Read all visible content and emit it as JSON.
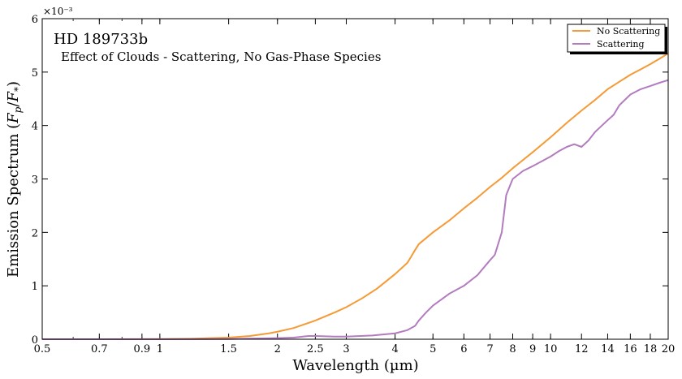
{
  "chart_data": {
    "type": "line",
    "title": "HD 189733b",
    "subtitle": "Effect of Clouds - Scattering, No Gas-Phase Species",
    "xlabel": "Wavelength (µm)",
    "ylabel": "Emission Spectrum (Fp/F*)",
    "y_multiplier": "×10⁻³",
    "xscale": "log",
    "xlim": [
      0.5,
      20
    ],
    "ylim": [
      0,
      6
    ],
    "x_ticks": [
      0.5,
      0.7,
      0.9,
      1,
      1.5,
      2,
      2.5,
      3,
      4,
      5,
      6,
      7,
      8,
      9,
      10,
      12,
      14,
      16,
      18,
      20
    ],
    "x_tick_labels": [
      "0.5",
      "0.7",
      "0.9",
      "1",
      "1.5",
      "2",
      "2.5",
      "3",
      "4",
      "5",
      "6",
      "7",
      "8",
      "9",
      "10",
      "12",
      "14",
      "16",
      "18",
      "20"
    ],
    "y_ticks": [
      0,
      1,
      2,
      3,
      4,
      5,
      6
    ],
    "y_tick_labels": [
      "0",
      "1",
      "2",
      "3",
      "4",
      "5",
      "6"
    ],
    "grid": false,
    "legend_position": "top-right",
    "series": [
      {
        "name": "No Scattering",
        "color": "#f59a35",
        "points": [
          [
            0.5,
            0
          ],
          [
            0.7,
            0
          ],
          [
            1.0,
            0.003
          ],
          [
            1.2,
            0.01
          ],
          [
            1.5,
            0.03
          ],
          [
            1.7,
            0.06
          ],
          [
            1.9,
            0.11
          ],
          [
            2.0,
            0.14
          ],
          [
            2.2,
            0.21
          ],
          [
            2.5,
            0.35
          ],
          [
            2.8,
            0.5
          ],
          [
            3.0,
            0.6
          ],
          [
            3.3,
            0.77
          ],
          [
            3.6,
            0.95
          ],
          [
            4.0,
            1.22
          ],
          [
            4.3,
            1.43
          ],
          [
            4.4,
            1.55
          ],
          [
            4.5,
            1.67
          ],
          [
            4.6,
            1.78
          ],
          [
            5.0,
            2.0
          ],
          [
            5.5,
            2.22
          ],
          [
            6.0,
            2.45
          ],
          [
            6.5,
            2.65
          ],
          [
            7.0,
            2.85
          ],
          [
            7.5,
            3.02
          ],
          [
            8.0,
            3.2
          ],
          [
            9.0,
            3.5
          ],
          [
            10.0,
            3.78
          ],
          [
            11.0,
            4.05
          ],
          [
            12.0,
            4.28
          ],
          [
            13.0,
            4.48
          ],
          [
            14.0,
            4.68
          ],
          [
            15.0,
            4.82
          ],
          [
            16.0,
            4.95
          ],
          [
            17.0,
            5.05
          ],
          [
            18.0,
            5.15
          ],
          [
            19.0,
            5.25
          ],
          [
            20.0,
            5.35
          ]
        ]
      },
      {
        "name": "Scattering",
        "color": "#b27cbf",
        "points": [
          [
            0.5,
            0
          ],
          [
            1.0,
            0
          ],
          [
            1.5,
            0.004
          ],
          [
            2.0,
            0.02
          ],
          [
            2.2,
            0.03
          ],
          [
            2.4,
            0.06
          ],
          [
            2.5,
            0.06
          ],
          [
            2.8,
            0.05
          ],
          [
            3.0,
            0.05
          ],
          [
            3.5,
            0.07
          ],
          [
            4.0,
            0.11
          ],
          [
            4.3,
            0.17
          ],
          [
            4.5,
            0.25
          ],
          [
            4.6,
            0.35
          ],
          [
            4.8,
            0.5
          ],
          [
            5.0,
            0.63
          ],
          [
            5.5,
            0.85
          ],
          [
            6.0,
            1.0
          ],
          [
            6.5,
            1.2
          ],
          [
            7.0,
            1.48
          ],
          [
            7.2,
            1.58
          ],
          [
            7.5,
            2.0
          ],
          [
            7.6,
            2.35
          ],
          [
            7.7,
            2.7
          ],
          [
            8.0,
            3.0
          ],
          [
            8.5,
            3.15
          ],
          [
            9.0,
            3.24
          ],
          [
            10.0,
            3.42
          ],
          [
            10.5,
            3.52
          ],
          [
            11.0,
            3.6
          ],
          [
            11.5,
            3.65
          ],
          [
            12.0,
            3.6
          ],
          [
            12.5,
            3.72
          ],
          [
            13.0,
            3.88
          ],
          [
            14.0,
            4.1
          ],
          [
            14.5,
            4.2
          ],
          [
            15.0,
            4.38
          ],
          [
            16.0,
            4.58
          ],
          [
            17.0,
            4.68
          ],
          [
            18.0,
            4.74
          ],
          [
            19.0,
            4.8
          ],
          [
            20.0,
            4.85
          ]
        ]
      }
    ]
  }
}
